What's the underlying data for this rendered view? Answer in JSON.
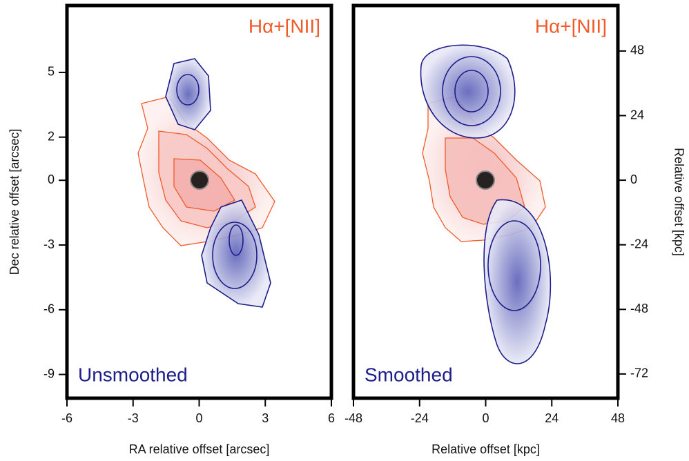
{
  "chart_data": [
    {
      "type": "contour",
      "xlabel": "RA relative offset [arcsec]",
      "ylabel": "Dec relative offset [arcsec]",
      "xlim": [
        -6,
        6
      ],
      "xticks": [
        -6,
        -3,
        0,
        3,
        6
      ],
      "ylim": [
        -10.1,
        8.1
      ],
      "yticks": [
        5,
        2,
        0,
        -3,
        -6,
        -9
      ],
      "line_label": "Hα+[NII]",
      "line_color": "#f05a28",
      "panel_label": "Unsmoothed",
      "panel_color": "#1c1c8a"
    },
    {
      "type": "contour",
      "xlabel": "Relative offset [kpc]",
      "ylabel": "Relative offset [kpc]",
      "xlim": [
        -48,
        48
      ],
      "xticks": [
        -48,
        -24,
        0,
        24,
        48
      ],
      "ylim": [
        -81,
        64.9
      ],
      "yticks": [
        48,
        24,
        0,
        -24,
        -48,
        -72
      ],
      "line_label": "Hα+[NII]",
      "line_color": "#f05a28",
      "panel_label": "Smoothed",
      "panel_color": "#1c1c8a"
    }
  ]
}
